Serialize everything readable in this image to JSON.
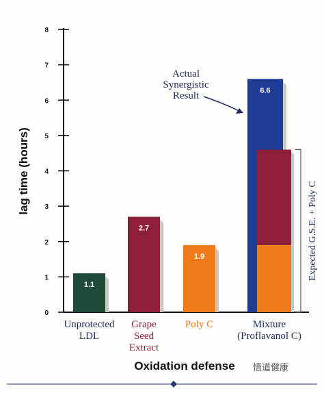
{
  "chart_data": {
    "type": "bar",
    "ylabel": "lag time (hours)",
    "xlabel": "Oxidation defense",
    "ylim": [
      0,
      8
    ],
    "yticks": [
      0,
      1,
      2,
      3,
      4,
      5,
      6,
      7,
      8
    ],
    "categories": [
      {
        "lines": [
          "Unprotected",
          "LDL"
        ],
        "value": 1.1,
        "label": "1.1",
        "color": "#1d4a39",
        "label_color": "#1f2d5c"
      },
      {
        "lines": [
          "Grape",
          "Seed",
          "Extract"
        ],
        "value": 2.7,
        "label": "2.7",
        "color": "#8d2038",
        "label_color": "#8d2038"
      },
      {
        "lines": [
          "Poly C"
        ],
        "value": 1.9,
        "label": "1.9",
        "color": "#ef7b1c",
        "label_color": "#e8761a"
      },
      {
        "lines": [
          "Mixture",
          "(Proflavanol C)"
        ],
        "value": 6.6,
        "label": "6.6",
        "color": "#1e3c96",
        "label_color": "#1f2d5c"
      }
    ],
    "expected_stack": {
      "components": [
        {
          "name": "Poly C",
          "value": 1.9,
          "color": "#ef7b1c"
        },
        {
          "name": "Grape Seed Extract",
          "value": 2.7,
          "color": "#8d2038"
        }
      ],
      "bracket_label": "Expected G.S.E. + Poly C"
    },
    "annotation": {
      "lines": [
        "Actual",
        "Synergistic",
        "Result"
      ]
    }
  },
  "watermark": "悟道健康"
}
